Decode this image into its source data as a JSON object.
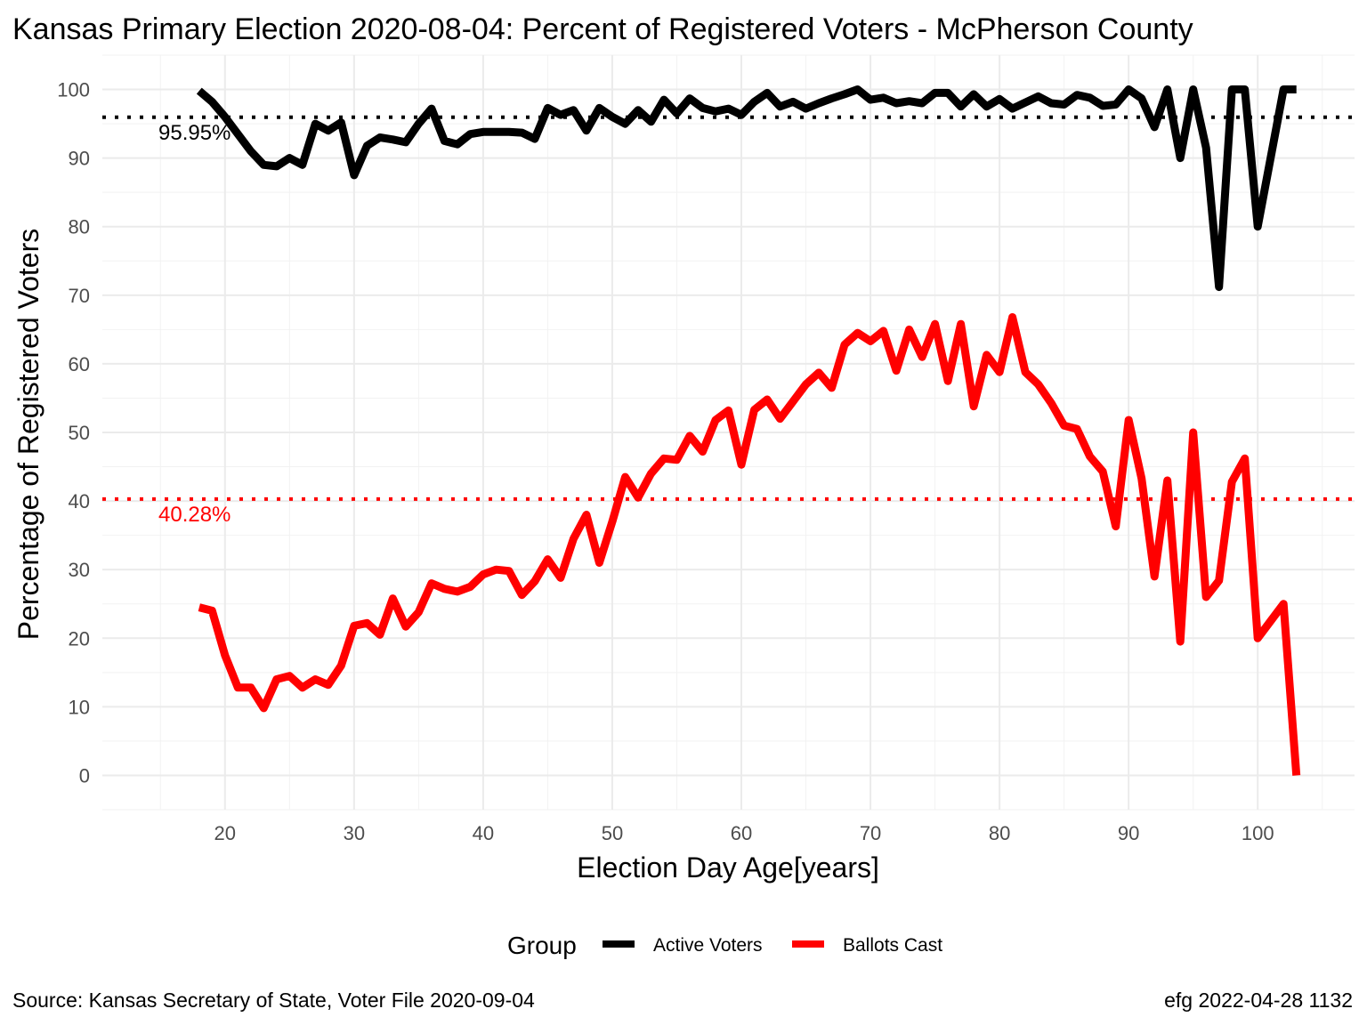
{
  "chart_data": {
    "type": "line",
    "title": "Kansas Primary Election 2020-08-04:  Percent of Registered Voters - McPherson County",
    "xlabel": "Election Day Age[years]",
    "ylabel": "Percentage of Registered Voters",
    "xlim": [
      10.5,
      107.5
    ],
    "ylim": [
      -5,
      105
    ],
    "x_ticks": [
      20,
      30,
      40,
      50,
      60,
      70,
      80,
      90,
      100
    ],
    "y_ticks": [
      0,
      10,
      20,
      30,
      40,
      50,
      60,
      70,
      80,
      90,
      100
    ],
    "grid": true,
    "legend": {
      "title": "Group",
      "placement": "bottom",
      "entries": [
        "Active Voters",
        "Ballots Cast"
      ]
    },
    "series": [
      {
        "name": "Active Voters",
        "color": "#000000",
        "x": [
          18,
          19,
          20,
          21,
          22,
          23,
          24,
          25,
          26,
          27,
          28,
          29,
          30,
          31,
          32,
          33,
          34,
          35,
          36,
          37,
          38,
          39,
          40,
          41,
          42,
          43,
          44,
          45,
          46,
          47,
          48,
          49,
          50,
          51,
          52,
          53,
          54,
          55,
          56,
          57,
          58,
          59,
          60,
          61,
          62,
          63,
          64,
          65,
          66,
          67,
          68,
          69,
          70,
          71,
          72,
          73,
          74,
          75,
          76,
          77,
          78,
          79,
          80,
          81,
          82,
          83,
          84,
          85,
          86,
          87,
          88,
          89,
          90,
          91,
          92,
          93,
          94,
          95,
          96,
          97,
          98,
          99,
          100,
          101,
          102,
          103
        ],
        "values": [
          99.8,
          98.2,
          96,
          93.5,
          91,
          89,
          88.8,
          90,
          89,
          95,
          94,
          95.2,
          87.5,
          91.8,
          93,
          92.7,
          92.3,
          95,
          97.2,
          92.5,
          92,
          93.5,
          93.8,
          93.8,
          93.8,
          93.7,
          92.8,
          97.3,
          96.3,
          97,
          94,
          97.3,
          96,
          95,
          97,
          95.3,
          98.5,
          96.5,
          98.7,
          97.3,
          96.8,
          97.2,
          96.3,
          98.2,
          99.5,
          97.5,
          98.2,
          97.2,
          98,
          98.7,
          99.3,
          100,
          98.5,
          98.8,
          98,
          98.3,
          98,
          99.5,
          99.5,
          97.5,
          99.3,
          97.5,
          98.6,
          97.2,
          98.1,
          99,
          98,
          97.8,
          99.2,
          98.8,
          97.6,
          97.8,
          100,
          98.7,
          94.5,
          100,
          90,
          100,
          91.5,
          71.2,
          100,
          100,
          80,
          90,
          100,
          100
        ]
      },
      {
        "name": "Ballots Cast",
        "color": "#ff0000",
        "x": [
          18,
          19,
          20,
          21,
          22,
          23,
          24,
          25,
          26,
          27,
          28,
          29,
          30,
          31,
          32,
          33,
          34,
          35,
          36,
          37,
          38,
          39,
          40,
          41,
          42,
          43,
          44,
          45,
          46,
          47,
          48,
          49,
          50,
          51,
          52,
          53,
          54,
          55,
          56,
          57,
          58,
          59,
          60,
          61,
          62,
          63,
          64,
          65,
          66,
          67,
          68,
          69,
          70,
          71,
          72,
          73,
          74,
          75,
          76,
          77,
          78,
          79,
          80,
          81,
          82,
          83,
          84,
          85,
          86,
          87,
          88,
          89,
          90,
          91,
          92,
          93,
          94,
          95,
          96,
          97,
          98,
          99,
          100,
          101,
          102,
          103
        ],
        "values": [
          24.5,
          24,
          17.5,
          12.8,
          12.8,
          9.8,
          14,
          14.5,
          12.8,
          14,
          13.2,
          16,
          21.8,
          22.2,
          20.5,
          25.8,
          21.7,
          23.8,
          28,
          27.2,
          26.8,
          27.5,
          29.3,
          30,
          29.8,
          26.3,
          28.3,
          31.5,
          28.8,
          34.5,
          38,
          31,
          37,
          43.5,
          40.5,
          44,
          46.2,
          46,
          49.5,
          47.2,
          51.8,
          53.2,
          45.3,
          53.3,
          54.8,
          52,
          54.5,
          57,
          58.7,
          56.5,
          62.8,
          64.5,
          63.3,
          64.8,
          59,
          65,
          61,
          65.8,
          57.5,
          65.8,
          53.8,
          61.3,
          58.8,
          66.8,
          58.8,
          57,
          54.3,
          51,
          50.5,
          46.5,
          44.3,
          36.3,
          51.8,
          43.3,
          29,
          43,
          19.5,
          50,
          26,
          28.4,
          42.8,
          46.2,
          20,
          22.5,
          25,
          0
        ]
      }
    ],
    "reference_lines": [
      {
        "series": "Active Voters",
        "value": 95.95,
        "label": "95.95%",
        "color": "#000000",
        "style": "dotted"
      },
      {
        "series": "Ballots Cast",
        "value": 40.28,
        "label": "40.28%",
        "color": "#ff0000",
        "style": "dotted"
      }
    ]
  },
  "caption": {
    "source": "Source:  Kansas Secretary of State, Voter File  2020-09-04",
    "stamp": "efg 2022-04-28 1132"
  }
}
